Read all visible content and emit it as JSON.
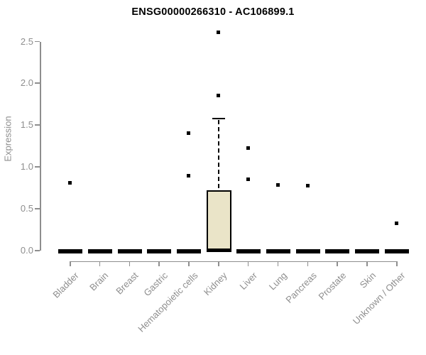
{
  "chart_data": {
    "type": "box",
    "title": "ENSG00000266310 - AC106899.1",
    "ylabel": "Expression",
    "xlabel": "",
    "ylim": [
      0,
      2.5
    ],
    "yticks": [
      0.0,
      0.5,
      1.0,
      1.5,
      2.0,
      2.5
    ],
    "grid": false,
    "legend": "none",
    "categories": [
      "Bladder",
      "Brain",
      "Breast",
      "Gastric",
      "Hematopoietic cells",
      "Kidney",
      "Liver",
      "Lung",
      "Pancreas",
      "Prostate",
      "Skin",
      "Unknown / Other"
    ],
    "boxes": [
      {
        "category": "Bladder",
        "q1": 0,
        "median": 0,
        "q3": 0,
        "whisker_low": 0,
        "whisker_high": 0,
        "outliers": [
          0.81
        ]
      },
      {
        "category": "Brain",
        "q1": 0,
        "median": 0,
        "q3": 0,
        "whisker_low": 0,
        "whisker_high": 0,
        "outliers": []
      },
      {
        "category": "Breast",
        "q1": 0,
        "median": 0,
        "q3": 0,
        "whisker_low": 0,
        "whisker_high": 0,
        "outliers": []
      },
      {
        "category": "Gastric",
        "q1": 0,
        "median": 0,
        "q3": 0,
        "whisker_low": 0,
        "whisker_high": 0,
        "outliers": []
      },
      {
        "category": "Hematopoietic cells",
        "q1": 0,
        "median": 0,
        "q3": 0,
        "whisker_low": 0,
        "whisker_high": 0,
        "outliers": [
          1.4,
          0.89
        ]
      },
      {
        "category": "Kidney",
        "q1": 0,
        "median": 0.01,
        "q3": 0.72,
        "whisker_low": 0,
        "whisker_high": 1.58,
        "outliers": [
          2.61,
          1.85
        ]
      },
      {
        "category": "Liver",
        "q1": 0,
        "median": 0,
        "q3": 0,
        "whisker_low": 0,
        "whisker_high": 0,
        "outliers": [
          1.22,
          0.85
        ]
      },
      {
        "category": "Lung",
        "q1": 0,
        "median": 0,
        "q3": 0,
        "whisker_low": 0,
        "whisker_high": 0,
        "outliers": [
          0.78
        ]
      },
      {
        "category": "Pancreas",
        "q1": 0,
        "median": 0,
        "q3": 0,
        "whisker_low": 0,
        "whisker_high": 0,
        "outliers": [
          0.77
        ]
      },
      {
        "category": "Prostate",
        "q1": 0,
        "median": 0,
        "q3": 0,
        "whisker_low": 0,
        "whisker_high": 0,
        "outliers": []
      },
      {
        "category": "Skin",
        "q1": 0,
        "median": 0,
        "q3": 0,
        "whisker_low": 0,
        "whisker_high": 0,
        "outliers": []
      },
      {
        "category": "Unknown / Other",
        "q1": 0,
        "median": 0,
        "q3": 0,
        "whisker_low": 0,
        "whisker_high": 0,
        "outliers": [
          0.32
        ]
      }
    ],
    "colors": {
      "box_fill": "#EAE4C8",
      "box_edge": "#000000",
      "outlier": "#000000",
      "axis": "#8E8E8E",
      "tick_label": "#8E8E8E",
      "title": "#000000",
      "background": "#FFFFFF"
    }
  }
}
